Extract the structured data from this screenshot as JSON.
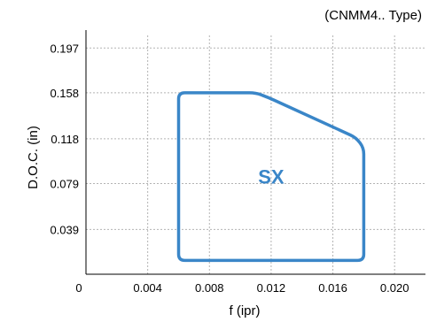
{
  "chart_data": {
    "type": "area",
    "title": "(CNMM4.. Type)",
    "xlabel": "f (ipr)",
    "ylabel": "D.O.C. (in)",
    "xlim": [
      0,
      0.022
    ],
    "ylim": [
      0,
      0.208
    ],
    "x_ticks": [
      "0",
      "0.004",
      "0.008",
      "0.012",
      "0.016",
      "0.020"
    ],
    "x_tick_values": [
      0,
      0.004,
      0.008,
      0.012,
      0.016,
      0.02
    ],
    "y_ticks": [
      "0.039",
      "0.079",
      "0.118",
      "0.158",
      "0.197"
    ],
    "y_tick_values": [
      0.039,
      0.079,
      0.118,
      0.158,
      0.197
    ],
    "grid": true,
    "series": [
      {
        "name": "SX",
        "color": "#3a86c8",
        "x": [
          0.006,
          0.011,
          0.0118,
          0.0175,
          0.018,
          0.018,
          0.006
        ],
        "y": [
          0.158,
          0.158,
          0.154,
          0.119,
          0.11,
          0.012,
          0.012
        ]
      }
    ]
  }
}
